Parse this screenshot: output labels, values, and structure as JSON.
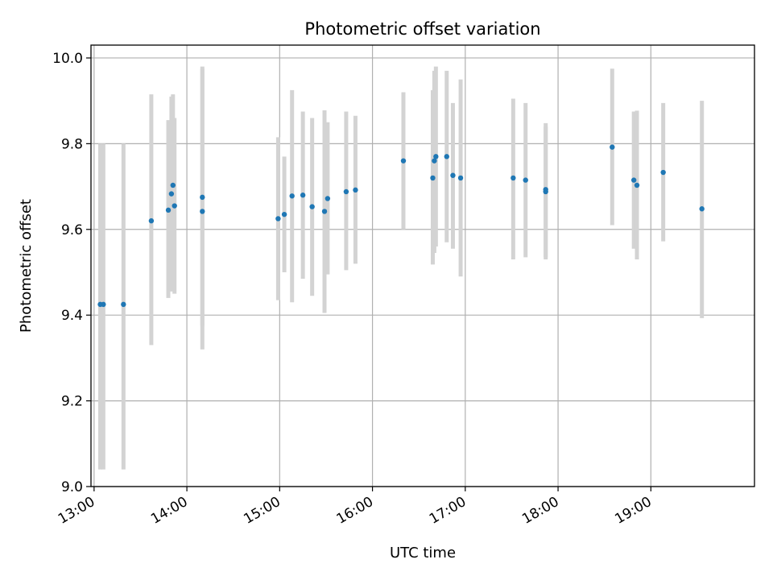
{
  "chart_data": {
    "type": "scatter",
    "title": "Photometric offset variation",
    "xlabel": "UTC time",
    "ylabel": "Photometric offset",
    "xlim": [
      "12:58",
      "20:07"
    ],
    "ylim": [
      9.0,
      10.03
    ],
    "x_ticks": [
      "13:00",
      "14:00",
      "15:00",
      "16:00",
      "17:00",
      "18:00",
      "19:00"
    ],
    "y_ticks": [
      "9.0",
      "9.2",
      "9.4",
      "9.6",
      "9.8",
      "10.0"
    ],
    "grid": true,
    "marker_color": "#1f77b4",
    "errorbar_color": "#d3d3d3",
    "points": [
      {
        "x": "13:04",
        "y": 9.425,
        "lo": 9.04,
        "hi": 9.8
      },
      {
        "x": "13:06",
        "y": 9.425,
        "lo": 9.04,
        "hi": 9.8
      },
      {
        "x": "13:19",
        "y": 9.425,
        "lo": 9.04,
        "hi": 9.8
      },
      {
        "x": "13:37",
        "y": 9.62,
        "lo": 9.33,
        "hi": 9.915
      },
      {
        "x": "13:48",
        "y": 9.645,
        "lo": 9.44,
        "hi": 9.855
      },
      {
        "x": "13:50",
        "y": 9.683,
        "lo": 9.455,
        "hi": 9.91
      },
      {
        "x": "13:51",
        "y": 9.703,
        "lo": 9.49,
        "hi": 9.915
      },
      {
        "x": "13:52",
        "y": 9.655,
        "lo": 9.45,
        "hi": 9.86
      },
      {
        "x": "14:10",
        "y": 9.675,
        "lo": 9.375,
        "hi": 9.975
      },
      {
        "x": "14:10",
        "y": 9.642,
        "lo": 9.32,
        "hi": 9.98
      },
      {
        "x": "14:59",
        "y": 9.625,
        "lo": 9.435,
        "hi": 9.815
      },
      {
        "x": "15:03",
        "y": 9.635,
        "lo": 9.5,
        "hi": 9.77
      },
      {
        "x": "15:08",
        "y": 9.678,
        "lo": 9.43,
        "hi": 9.925
      },
      {
        "x": "15:15",
        "y": 9.68,
        "lo": 9.485,
        "hi": 9.875
      },
      {
        "x": "15:21",
        "y": 9.653,
        "lo": 9.445,
        "hi": 9.86
      },
      {
        "x": "15:29",
        "y": 9.642,
        "lo": 9.405,
        "hi": 9.878
      },
      {
        "x": "15:31",
        "y": 9.672,
        "lo": 9.495,
        "hi": 9.85
      },
      {
        "x": "15:43",
        "y": 9.688,
        "lo": 9.505,
        "hi": 9.875
      },
      {
        "x": "15:49",
        "y": 9.692,
        "lo": 9.52,
        "hi": 9.865
      },
      {
        "x": "16:20",
        "y": 9.76,
        "lo": 9.6,
        "hi": 9.92
      },
      {
        "x": "16:39",
        "y": 9.72,
        "lo": 9.518,
        "hi": 9.925
      },
      {
        "x": "16:40",
        "y": 9.76,
        "lo": 9.545,
        "hi": 9.97
      },
      {
        "x": "16:41",
        "y": 9.77,
        "lo": 9.56,
        "hi": 9.98
      },
      {
        "x": "16:48",
        "y": 9.77,
        "lo": 9.57,
        "hi": 9.97
      },
      {
        "x": "16:52",
        "y": 9.726,
        "lo": 9.555,
        "hi": 9.895
      },
      {
        "x": "16:57",
        "y": 9.72,
        "lo": 9.49,
        "hi": 9.95
      },
      {
        "x": "17:31",
        "y": 9.72,
        "lo": 9.53,
        "hi": 9.905
      },
      {
        "x": "17:39",
        "y": 9.715,
        "lo": 9.535,
        "hi": 9.895
      },
      {
        "x": "17:52",
        "y": 9.693,
        "lo": 9.53,
        "hi": 9.848
      },
      {
        "x": "17:52",
        "y": 9.688,
        "lo": 9.535,
        "hi": 9.84
      },
      {
        "x": "18:35",
        "y": 9.792,
        "lo": 9.61,
        "hi": 9.975
      },
      {
        "x": "18:49",
        "y": 9.715,
        "lo": 9.555,
        "hi": 9.875
      },
      {
        "x": "18:51",
        "y": 9.703,
        "lo": 9.53,
        "hi": 9.877
      },
      {
        "x": "19:08",
        "y": 9.733,
        "lo": 9.572,
        "hi": 9.895
      },
      {
        "x": "19:33",
        "y": 9.648,
        "lo": 9.393,
        "hi": 9.9
      }
    ]
  }
}
